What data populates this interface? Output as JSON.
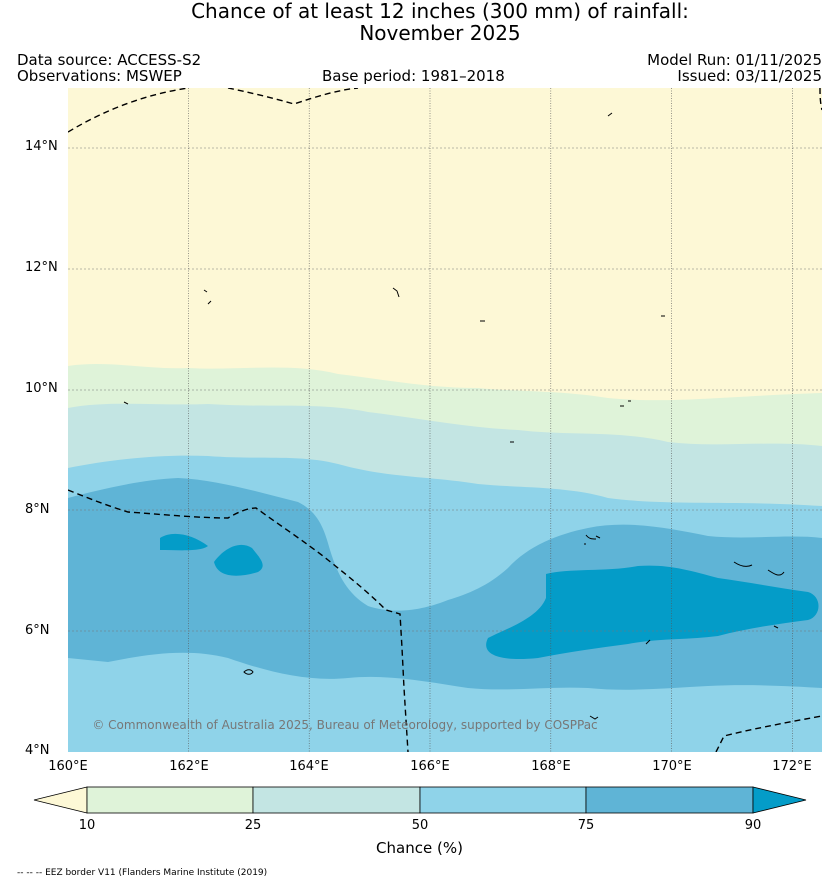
{
  "title": {
    "line1": "Chance of at least 12 inches (300  mm) of rainfall:",
    "line2": "November 2025"
  },
  "header": {
    "data_source": "Data source: ACCESS-S2",
    "observations": "Observations: MSWEP",
    "base_period": "Base period: 1981–2018",
    "model_run": "Model Run: 01/11/2025",
    "issued": "Issued: 03/11/2025"
  },
  "map": {
    "lat_labels": [
      "14°N",
      "12°N",
      "10°N",
      "8°N",
      "6°N",
      "4°N"
    ],
    "lon_labels": [
      "160°E",
      "162°E",
      "164°E",
      "166°E",
      "168°E",
      "170°E",
      "172°E"
    ],
    "copyright": "© Commonwealth of Australia 2025, Bureau of Meteorology, supported by COSPPac"
  },
  "colorbar": {
    "ticks": [
      "10",
      "25",
      "50",
      "75",
      "90"
    ],
    "label": "Chance (%)",
    "colors": [
      "#fdf8d6",
      "#dff3d9",
      "#c3e5e3",
      "#8fd3e9",
      "#5fb4d6",
      "#049cc8"
    ]
  },
  "footnote": "-- -- -- EEZ border V11 (Flanders Marine Institute (2019)"
}
